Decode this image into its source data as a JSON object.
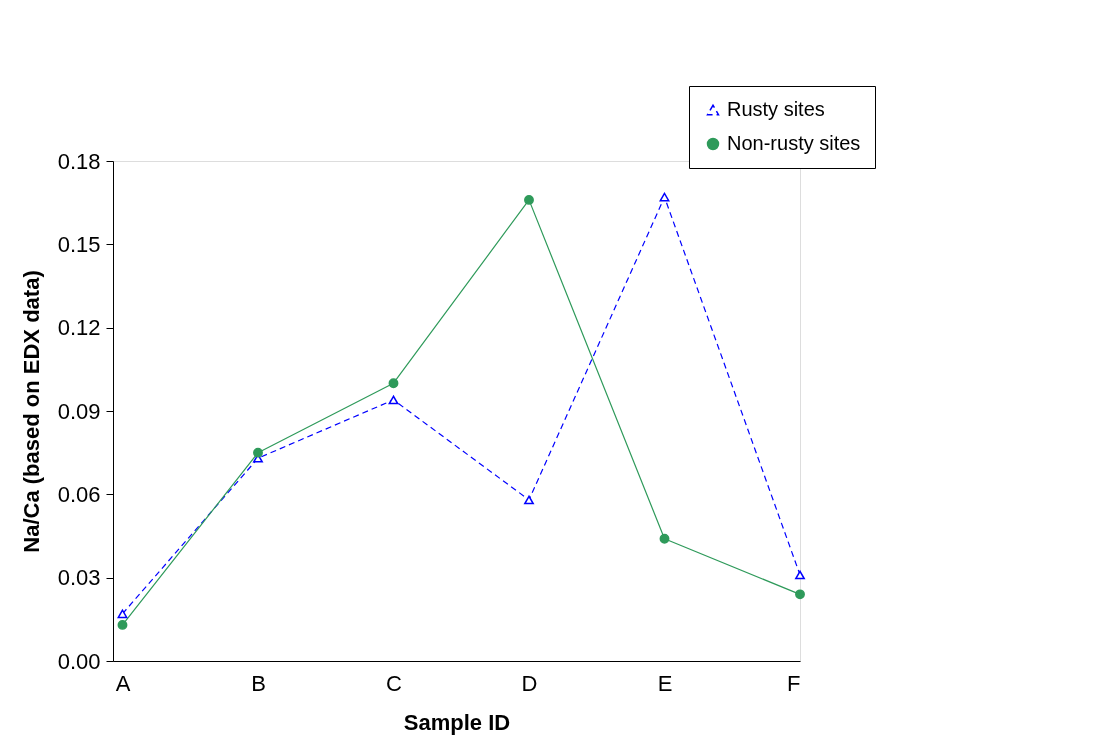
{
  "chart_data": {
    "type": "line",
    "xlabel": "Sample ID",
    "ylabel": "Na/Ca (based on EDX data)",
    "categories": [
      "A",
      "B",
      "C",
      "D",
      "E",
      "F"
    ],
    "ylim": [
      0,
      0.18
    ],
    "yticks": [
      {
        "value": 0,
        "label": "0.00"
      },
      0.03,
      0.06,
      0.09,
      0.12,
      0.15,
      0.18
    ],
    "grid": false,
    "legend": "top right",
    "series": [
      {
        "name": "Rusty sites",
        "color": "#0000ff",
        "marker": "triangle",
        "line_style": "dashed",
        "values": [
          0.017,
          0.073,
          0.094,
          0.058,
          0.167,
          0.031
        ]
      },
      {
        "name": "Non-rusty sites",
        "color": "#2e9a5a",
        "marker": "circle",
        "line_style": "solid",
        "values": [
          0.013,
          0.075,
          0.1,
          0.166,
          0.044,
          0.024
        ]
      }
    ]
  }
}
